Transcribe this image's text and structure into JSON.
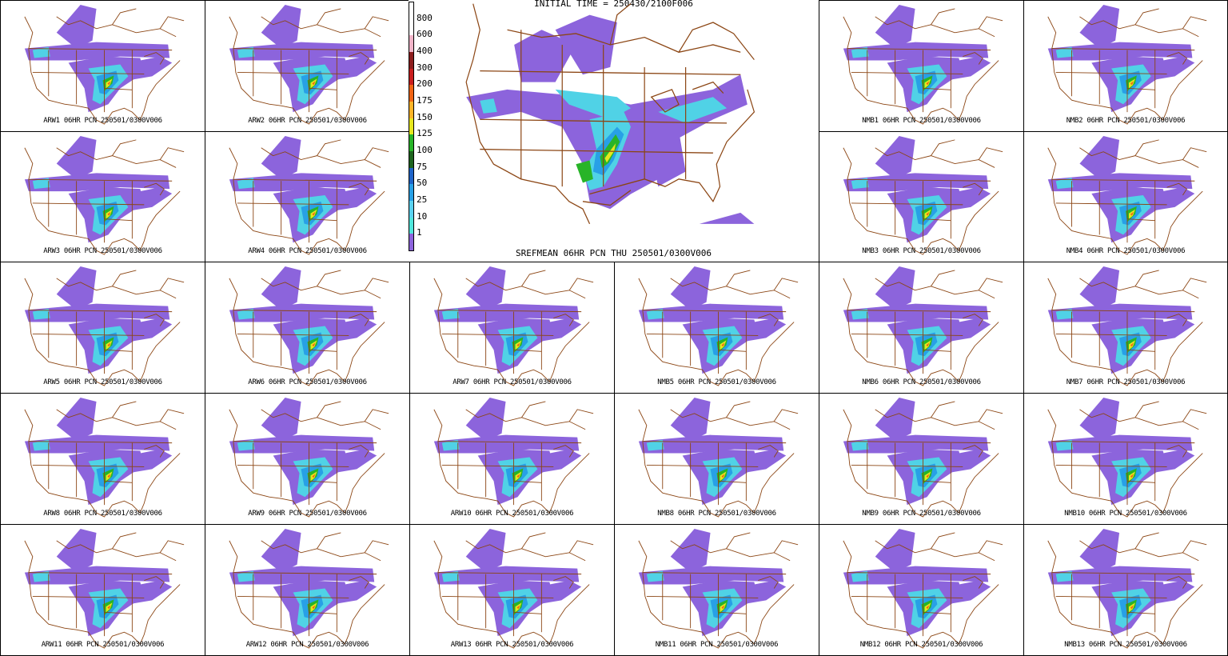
{
  "big_panel": {
    "initial_time": "INITIAL TIME = 250430/2100F006",
    "title": "SREFMEAN 06HR PCN THU 250501/0300V006"
  },
  "colorbar": {
    "levels": [
      {
        "label": "800",
        "color": "#ffffff"
      },
      {
        "label": "600",
        "color": "#f0b4c8"
      },
      {
        "label": "400",
        "color": "#8c1e1e"
      },
      {
        "label": "300",
        "color": "#c81e1e"
      },
      {
        "label": "200",
        "color": "#f06414"
      },
      {
        "label": "175",
        "color": "#ffb428"
      },
      {
        "label": "150",
        "color": "#e6e61e"
      },
      {
        "label": "125",
        "color": "#28b428"
      },
      {
        "label": "100",
        "color": "#1e641e"
      },
      {
        "label": "75",
        "color": "#1e64c8"
      },
      {
        "label": "50",
        "color": "#28a0e6"
      },
      {
        "label": "25",
        "color": "#5ad2f0"
      },
      {
        "label": "10",
        "color": "#50e6dc"
      },
      {
        "label": "1",
        "color": "#8c64dc"
      }
    ],
    "bottom_color": "#ffffff"
  },
  "colors": {
    "boundary": "#8b4513",
    "light_precip": "#8c64dc",
    "moderate_precip": "#50d2e6",
    "heavy_precip": "#28a0e6",
    "very_heavy": "#28b428",
    "extreme": "#f06414"
  },
  "panels": [
    {
      "label": "ARW1 06HR PCN 250501/0300V006"
    },
    {
      "label": "ARW2 06HR PCN 250501/0300V006"
    },
    {
      "label": "NMB1 06HR PCN 250501/0300V006"
    },
    {
      "label": "NMB2 06HR PCN 250501/0300V006"
    },
    {
      "label": "ARW3 06HR PCN 250501/0300V006"
    },
    {
      "label": "ARW4 06HR PCN 250501/0300V006"
    },
    {
      "label": "NMB3 06HR PCN 250501/0300V006"
    },
    {
      "label": "NMB4 06HR PCN 250501/0300V006"
    },
    {
      "label": "ARW5 06HR PCN 250501/0300V006"
    },
    {
      "label": "ARW6 06HR PCN 250501/0300V006"
    },
    {
      "label": "ARW7 06HR PCN 250501/0300V006"
    },
    {
      "label": "NMB5 06HR PCN 250501/0300V006"
    },
    {
      "label": "NMB6 06HR PCN 250501/0300V006"
    },
    {
      "label": "NMB7 06HR PCN 250501/0300V006"
    },
    {
      "label": "ARW8 06HR PCN 250501/0300V006"
    },
    {
      "label": "ARW9 06HR PCN 250501/0300V006"
    },
    {
      "label": "ARW10 06HR PCN 250501/0300V006"
    },
    {
      "label": "NMB8 06HR PCN 250501/0300V006"
    },
    {
      "label": "NMB9 06HR PCN 250501/0300V006"
    },
    {
      "label": "NMB10 06HR PCN 250501/0300V006"
    },
    {
      "label": "ARW11 06HR PCN 250501/0300V006"
    },
    {
      "label": "ARW12 06HR PCN 250501/0300V006"
    },
    {
      "label": "ARW13 06HR PCN 250501/0300V006"
    },
    {
      "label": "NMB11 06HR PCN 250501/0300V006"
    },
    {
      "label": "NMB12 06HR PCN 250501/0300V006"
    },
    {
      "label": "NMB13 06HR PCN 250501/0300V006"
    }
  ]
}
